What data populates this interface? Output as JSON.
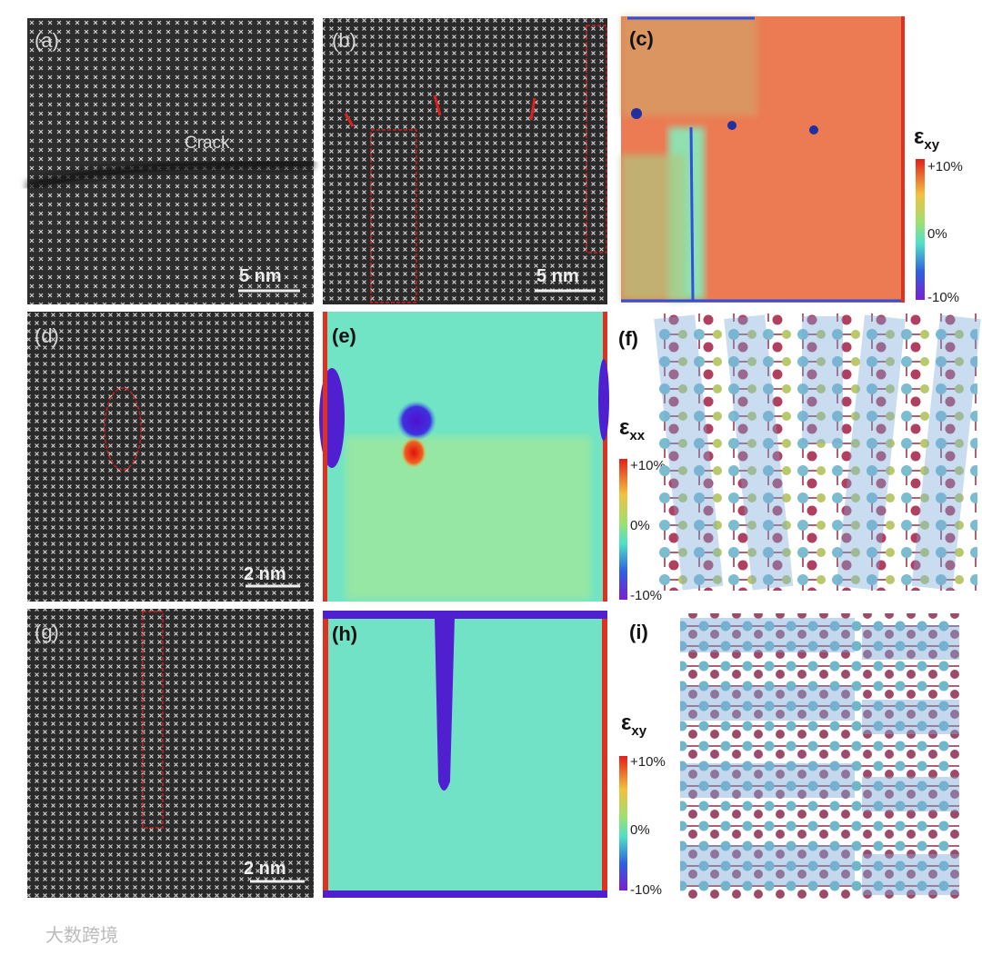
{
  "panels": [
    {
      "label": "(a)",
      "annotation": "Crack",
      "scale_bar": "5 nm"
    },
    {
      "label": "(b)",
      "scale_bar": "5 nm"
    },
    {
      "label": "(c)"
    },
    {
      "label": "(d)",
      "scale_bar": "2 nm"
    },
    {
      "label": "(e)"
    },
    {
      "label": "(f)"
    },
    {
      "label": "(g)",
      "scale_bar": "2 nm"
    },
    {
      "label": "(h)"
    },
    {
      "label": "(i)"
    }
  ],
  "colorbars": [
    {
      "symbol": "ε",
      "subscript": "xy",
      "max": "+10%",
      "mid": "0%",
      "min": "-10%"
    },
    {
      "symbol": "ε",
      "subscript": "xx",
      "max": "+10%",
      "mid": "0%",
      "min": "-10%"
    },
    {
      "symbol": "ε",
      "subscript": "xy",
      "max": "+10%",
      "mid": "0%",
      "min": "-10%"
    }
  ],
  "watermark": "大数跨境"
}
